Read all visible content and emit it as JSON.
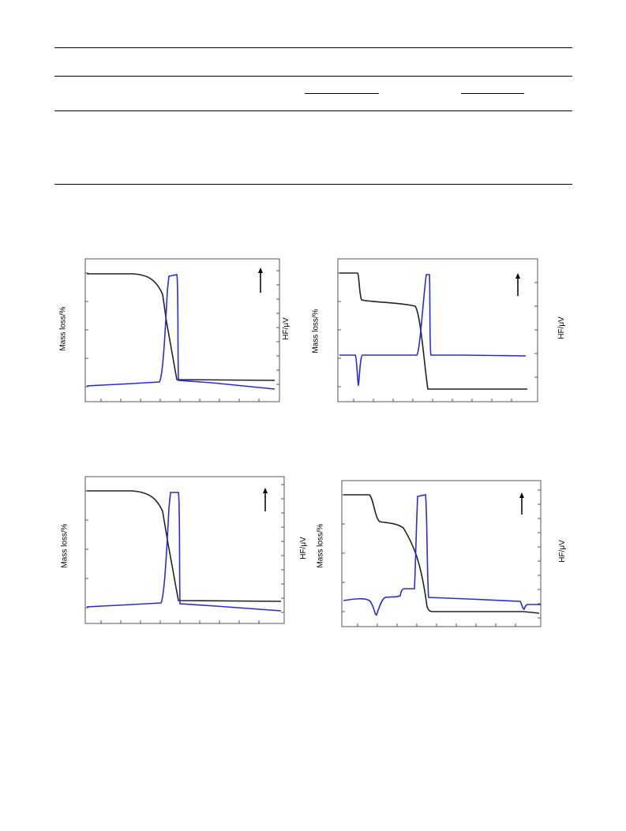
{
  "table": {
    "rules": [
      "top",
      "header",
      "subheader",
      "bottom"
    ]
  },
  "figure": {
    "panels": [
      {
        "id": "a",
        "left_label": "Mass loss/%",
        "right_label": "HF/μV"
      },
      {
        "id": "b",
        "left_label": "Mass loss/%",
        "right_label": "HF/μV"
      },
      {
        "id": "c",
        "left_label": "Mass loss/%",
        "right_label": "HF/μV"
      },
      {
        "id": "d",
        "left_label": "Mass loss/%",
        "right_label": "HF/μV"
      }
    ],
    "colors": {
      "mass_curve": "#222222",
      "hf_curve": "#2a2ae0",
      "axes": "#555555"
    }
  }
}
